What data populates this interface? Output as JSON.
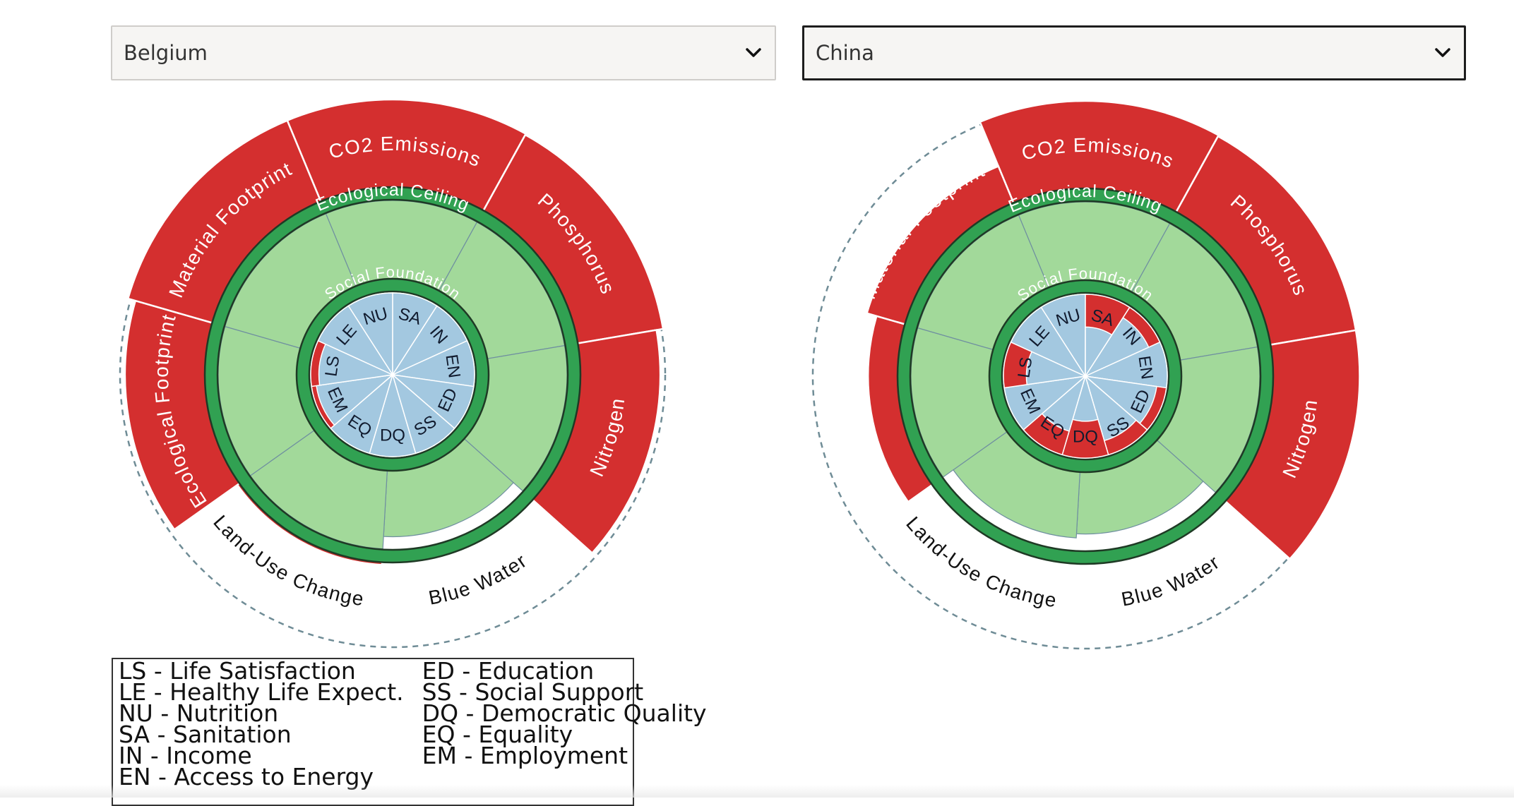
{
  "selectors": [
    {
      "value": "Belgium",
      "active": false
    },
    {
      "value": "China",
      "active": true
    }
  ],
  "colors": {
    "overshoot": "#d42f2f",
    "ceiling": "#31a152",
    "ecological_fill": "#a2d99a",
    "social_fill": "#a3c8e0",
    "shortfall": "#d42f2f",
    "dashed_circle": "#6f8c96"
  },
  "ring_labels": {
    "ecological": "Ecological Ceiling",
    "social": "Social Foundation"
  },
  "ecological_dimensions": [
    "CO2 Emissions",
    "Phosphorus",
    "Nitrogen",
    "Blue Water",
    "Land-Use Change",
    "Ecological Footprint",
    "Material Footprint"
  ],
  "social_dimensions": [
    "NU",
    "SA",
    "IN",
    "EN",
    "ED",
    "SS",
    "DQ",
    "EQ",
    "EM",
    "LS",
    "LE"
  ],
  "donuts": [
    {
      "country": "Belgium",
      "ecological_values": [
        2.5,
        2.3,
        2.2,
        0.85,
        1.05,
        2.2,
        2.4
      ],
      "social_values": [
        1,
        1,
        1,
        1,
        1,
        1,
        1,
        1,
        0.94,
        0.9,
        1
      ]
    },
    {
      "country": "China",
      "ecological_values": [
        2.4,
        2.3,
        2.3,
        0.8,
        0.85,
        1.45,
        1.6
      ],
      "social_values": [
        1,
        0.6,
        0.85,
        1,
        0.88,
        0.82,
        0.55,
        0.7,
        1,
        0.72,
        1
      ]
    }
  ],
  "legend": {
    "column1": [
      "LS - Life Satisfaction",
      "LE - Healthy Life Expect.",
      "NU - Nutrition",
      "SA - Sanitation",
      "IN - Income",
      "EN - Access to Energy"
    ],
    "column2": [
      "ED - Education",
      "SS - Social Support",
      "DQ - Democratic Quality",
      "EQ - Equality",
      "EM - Employment"
    ]
  }
}
